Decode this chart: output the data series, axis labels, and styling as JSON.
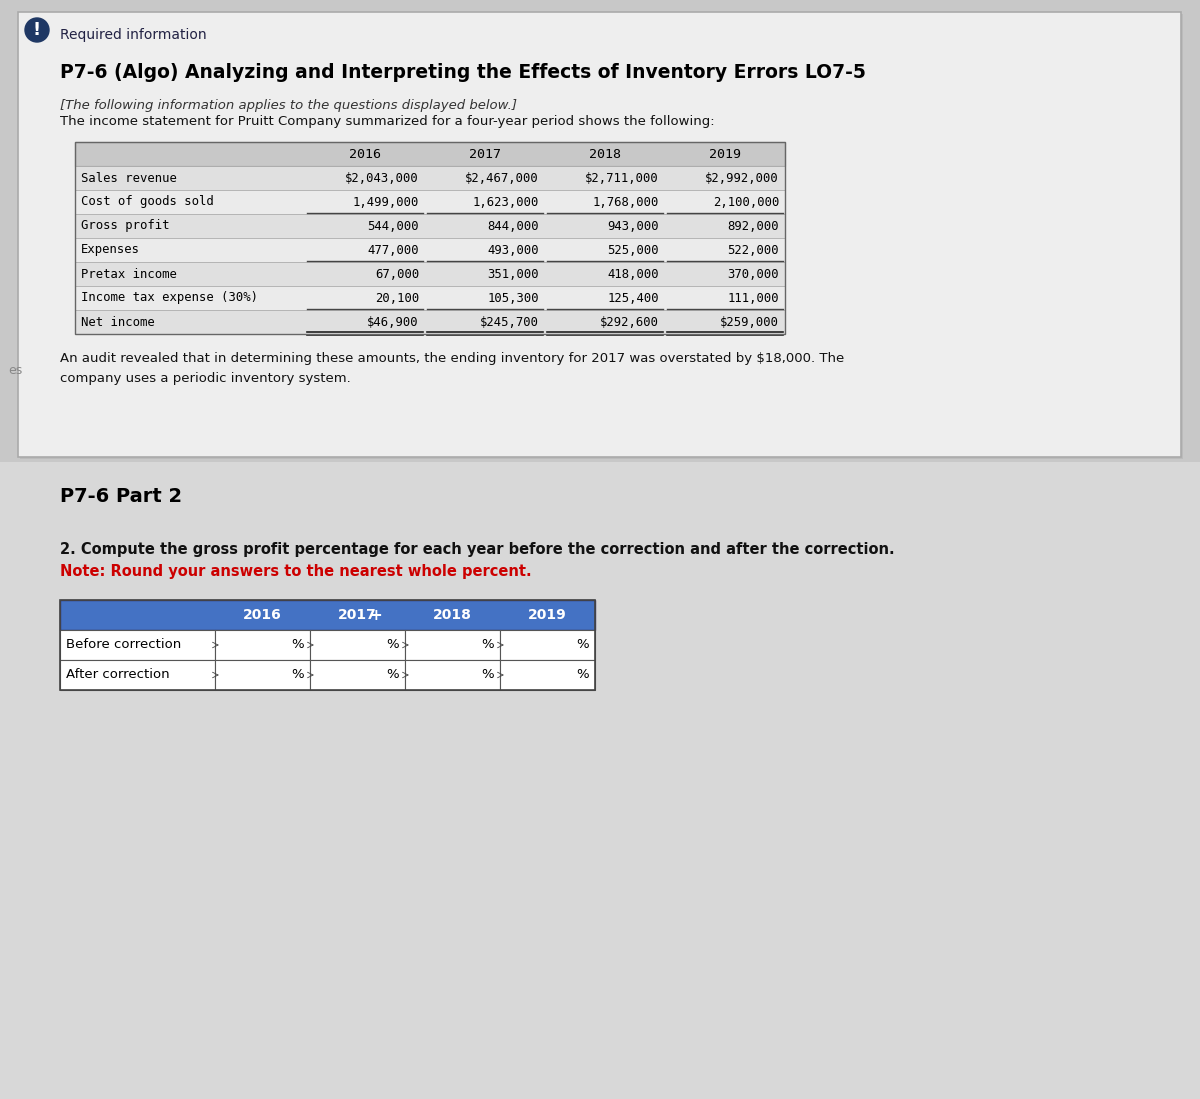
{
  "page_bg": "#c8c8c8",
  "card_bg": "#f0f0f0",
  "card_border": "#999999",
  "required_info_label": "Required information",
  "main_title": "P7-6 (Algo) Analyzing and Interpreting the Effects of Inventory Errors LO7-5",
  "italic_line1": "[The following information applies to the questions displayed below.]",
  "italic_line2": "The income statement for Pruitt Company summarized for a four-year period shows the following:",
  "table1_rows": [
    [
      "Sales revenue",
      "$2,043,000",
      "$2,467,000",
      "$2,711,000",
      "$2,992,000"
    ],
    [
      "Cost of goods sold",
      "1,499,000",
      "1,623,000",
      "1,768,000",
      "2,100,000"
    ],
    [
      "Gross profit",
      "544,000",
      "844,000",
      "943,000",
      "892,000"
    ],
    [
      "Expenses",
      "477,000",
      "493,000",
      "525,000",
      "522,000"
    ],
    [
      "Pretax income",
      "67,000",
      "351,000",
      "418,000",
      "370,000"
    ],
    [
      "Income tax expense (30%)",
      "20,100",
      "105,300",
      "125,400",
      "111,000"
    ],
    [
      "Net income",
      "$46,900",
      "$245,700",
      "$292,600",
      "$259,000"
    ]
  ],
  "table1_underline_after": [
    1,
    3,
    5
  ],
  "audit_text1": "An audit revealed that in determining these amounts, the ending inventory for 2017 was overstated by $18,000. The",
  "audit_text2": "company uses a periodic inventory system.",
  "part2_label": "P7-6 Part 2",
  "instruction_bold": "2. Compute the gross profit percentage for each year before the correction and after the correction.",
  "instruction_note": "Note: Round your answers to the nearest whole percent.",
  "years": [
    "2016",
    "2017",
    "2018",
    "2019"
  ],
  "table2_rows": [
    "Before correction",
    "After correction"
  ],
  "table2_header_bg": "#4472c4",
  "table2_header_fg": "#ffffff",
  "icon_bg": "#1f3864",
  "icon_fg": "#ffffff",
  "es_label": "es",
  "card_inner_bg": "#f5f5f5"
}
